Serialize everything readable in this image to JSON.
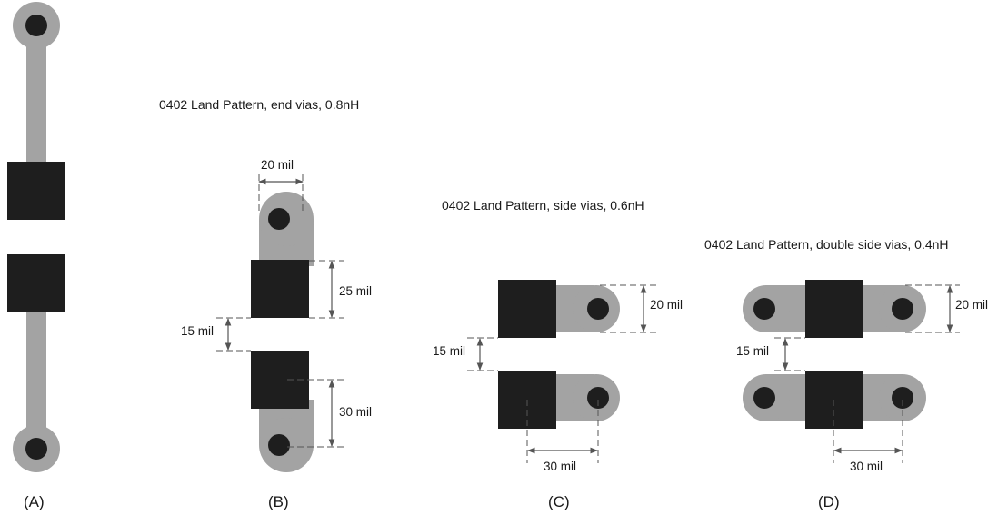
{
  "captions": {
    "b": "0402 Land Pattern, end vias, 0.8nH",
    "c": "0402 Land Pattern, side vias, 0.6nH",
    "d": "0402 Land Pattern, double side vias, 0.4nH"
  },
  "labels": {
    "a": "(A)",
    "b": "(B)",
    "c": "(C)",
    "d": "(D)"
  },
  "dimensions": {
    "b_width": "20 mil",
    "b_pad_length": "25 mil",
    "b_gap": "15 mil",
    "b_via_offset": "30 mil",
    "c_trace_width": "20 mil",
    "c_gap": "15 mil",
    "c_via_offset": "30 mil",
    "d_trace_width": "20 mil",
    "d_gap": "15 mil",
    "d_via_offset": "30 mil"
  },
  "colors": {
    "pad": "#1e1e1e",
    "trace": "#a3a3a3",
    "via": "#1e1e1e"
  }
}
